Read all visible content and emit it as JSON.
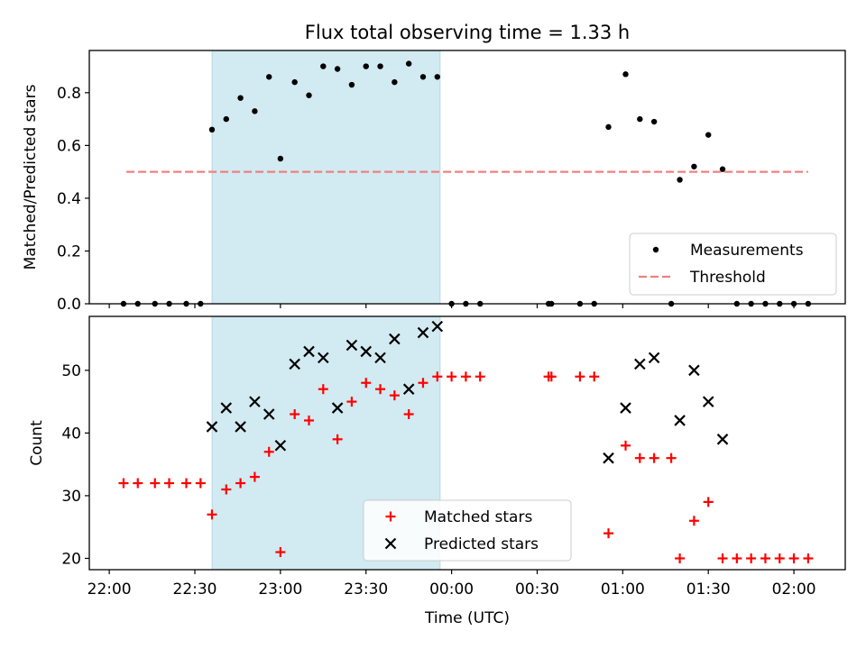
{
  "chart_data": {
    "title": "Flux total observing time = 1.33 h",
    "xlabel": "Time (UTC)",
    "x_ticks": [
      "22:00",
      "22:30",
      "23:00",
      "23:30",
      "00:00",
      "00:30",
      "01:00",
      "01:30",
      "02:00"
    ],
    "x_range": [
      "21:53",
      "02:18"
    ],
    "shaded_interval": [
      "22:36",
      "23:56"
    ],
    "colors": {
      "measurements": "#000000",
      "threshold": "#f08080",
      "matched": "#ff0000",
      "predicted": "#000000",
      "shade": "#add8e6"
    },
    "panels": [
      {
        "type": "scatter",
        "ylabel": "Matched/Predicted stars",
        "ylim": [
          0,
          0.96
        ],
        "y_ticks": [
          "0.0",
          "0.2",
          "0.4",
          "0.6",
          "0.8"
        ],
        "legend": [
          "Measurements",
          "Threshold"
        ],
        "legend_position": "lower right",
        "threshold": {
          "name": "Threshold",
          "y": 0.5,
          "x_start": "22:06",
          "x_end": "02:05"
        },
        "series": [
          {
            "name": "Measurements",
            "marker": "dot",
            "points": [
              [
                "22:05",
                0.0
              ],
              [
                "22:10",
                0.0
              ],
              [
                "22:16",
                0.0
              ],
              [
                "22:21",
                0.0
              ],
              [
                "22:27",
                0.0
              ],
              [
                "22:32",
                0.0
              ],
              [
                "22:36",
                0.66
              ],
              [
                "22:41",
                0.7
              ],
              [
                "22:46",
                0.78
              ],
              [
                "22:51",
                0.73
              ],
              [
                "22:56",
                0.86
              ],
              [
                "23:00",
                0.55
              ],
              [
                "23:05",
                0.84
              ],
              [
                "23:10",
                0.79
              ],
              [
                "23:15",
                0.9
              ],
              [
                "23:20",
                0.89
              ],
              [
                "23:25",
                0.83
              ],
              [
                "23:30",
                0.9
              ],
              [
                "23:35",
                0.9
              ],
              [
                "23:40",
                0.84
              ],
              [
                "23:45",
                0.91
              ],
              [
                "23:50",
                0.86
              ],
              [
                "23:55",
                0.86
              ],
              [
                "00:00",
                0.0
              ],
              [
                "00:05",
                0.0
              ],
              [
                "00:10",
                0.0
              ],
              [
                "00:34",
                0.0
              ],
              [
                "00:35",
                0.0
              ],
              [
                "00:45",
                0.0
              ],
              [
                "00:50",
                0.0
              ],
              [
                "00:55",
                0.67
              ],
              [
                "01:01",
                0.87
              ],
              [
                "01:06",
                0.7
              ],
              [
                "01:11",
                0.69
              ],
              [
                "01:17",
                0.0
              ],
              [
                "01:20",
                0.47
              ],
              [
                "01:25",
                0.52
              ],
              [
                "01:30",
                0.64
              ],
              [
                "01:35",
                0.51
              ],
              [
                "01:40",
                0.0
              ],
              [
                "01:45",
                0.0
              ],
              [
                "01:50",
                0.0
              ],
              [
                "01:55",
                0.0
              ],
              [
                "02:00",
                0.0
              ],
              [
                "02:05",
                0.0
              ]
            ]
          }
        ]
      },
      {
        "type": "scatter",
        "ylabel": "Count",
        "ylim": [
          18.2,
          58.6
        ],
        "y_ticks": [
          "20",
          "30",
          "40",
          "50"
        ],
        "legend": [
          "Matched stars",
          "Predicted stars"
        ],
        "legend_position": "lower center",
        "series": [
          {
            "name": "Matched stars",
            "marker": "plus",
            "points": [
              [
                "22:05",
                32
              ],
              [
                "22:10",
                32
              ],
              [
                "22:16",
                32
              ],
              [
                "22:21",
                32
              ],
              [
                "22:27",
                32
              ],
              [
                "22:32",
                32
              ],
              [
                "22:36",
                27
              ],
              [
                "22:41",
                31
              ],
              [
                "22:46",
                32
              ],
              [
                "22:51",
                33
              ],
              [
                "22:56",
                37
              ],
              [
                "23:00",
                21
              ],
              [
                "23:05",
                43
              ],
              [
                "23:10",
                42
              ],
              [
                "23:15",
                47
              ],
              [
                "23:20",
                39
              ],
              [
                "23:25",
                45
              ],
              [
                "23:30",
                48
              ],
              [
                "23:35",
                47
              ],
              [
                "23:40",
                46
              ],
              [
                "23:45",
                43
              ],
              [
                "23:50",
                48
              ],
              [
                "23:55",
                49
              ],
              [
                "00:00",
                49
              ],
              [
                "00:05",
                49
              ],
              [
                "00:10",
                49
              ],
              [
                "00:34",
                49
              ],
              [
                "00:35",
                49
              ],
              [
                "00:45",
                49
              ],
              [
                "00:50",
                49
              ],
              [
                "00:55",
                24
              ],
              [
                "01:01",
                38
              ],
              [
                "01:06",
                36
              ],
              [
                "01:11",
                36
              ],
              [
                "01:17",
                36
              ],
              [
                "01:20",
                20
              ],
              [
                "01:25",
                26
              ],
              [
                "01:30",
                29
              ],
              [
                "01:35",
                20
              ],
              [
                "01:40",
                20
              ],
              [
                "01:45",
                20
              ],
              [
                "01:50",
                20
              ],
              [
                "01:55",
                20
              ],
              [
                "02:00",
                20
              ],
              [
                "02:05",
                20
              ]
            ]
          },
          {
            "name": "Predicted stars",
            "marker": "x",
            "points": [
              [
                "22:36",
                41
              ],
              [
                "22:41",
                44
              ],
              [
                "22:46",
                41
              ],
              [
                "22:51",
                45
              ],
              [
                "22:56",
                43
              ],
              [
                "23:00",
                38
              ],
              [
                "23:05",
                51
              ],
              [
                "23:10",
                53
              ],
              [
                "23:15",
                52
              ],
              [
                "23:20",
                44
              ],
              [
                "23:25",
                54
              ],
              [
                "23:30",
                53
              ],
              [
                "23:35",
                52
              ],
              [
                "23:40",
                55
              ],
              [
                "23:45",
                47
              ],
              [
                "23:50",
                56
              ],
              [
                "23:55",
                57
              ],
              [
                "00:55",
                36
              ],
              [
                "01:01",
                44
              ],
              [
                "01:06",
                51
              ],
              [
                "01:11",
                52
              ],
              [
                "01:20",
                42
              ],
              [
                "01:25",
                50
              ],
              [
                "01:30",
                45
              ],
              [
                "01:35",
                39
              ]
            ]
          }
        ]
      }
    ]
  }
}
